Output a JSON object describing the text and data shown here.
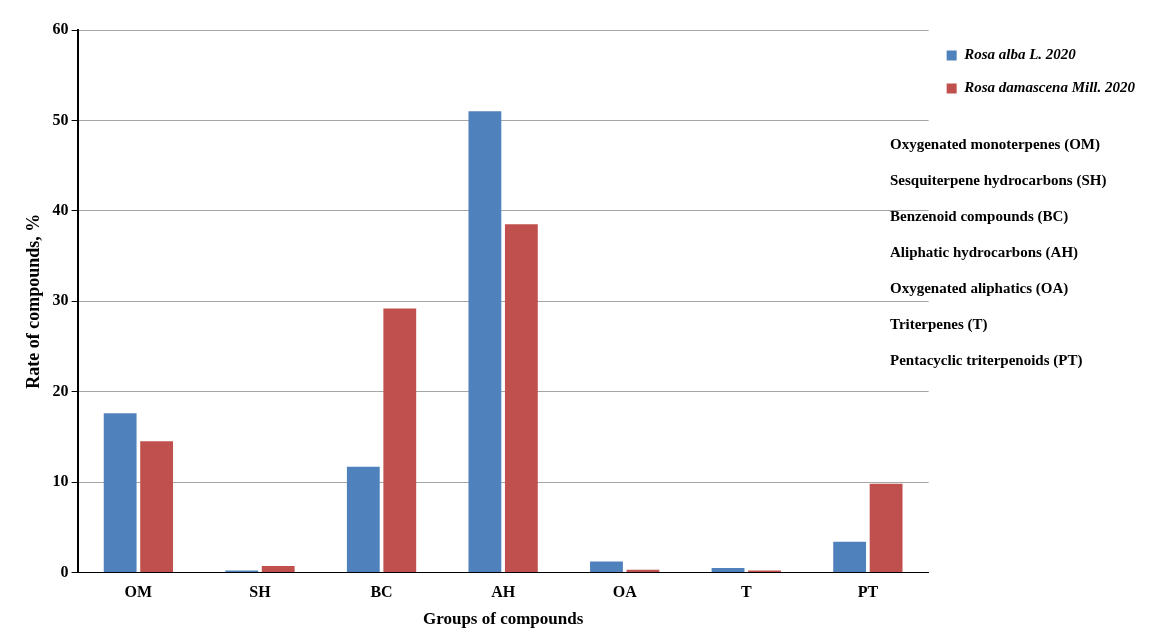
{
  "chart_data": {
    "type": "bar",
    "xlabel": "Groups of compounds",
    "ylabel": "Rate of compounds, %",
    "categories": [
      "OM",
      "SH",
      "BC",
      "AH",
      "OA",
      "T",
      "PT"
    ],
    "series": [
      {
        "name": "Rosa alba L. 2020",
        "color": "#4f81bd",
        "values": [
          17.6,
          0.2,
          11.7,
          51,
          1.2,
          0.5,
          3.4
        ]
      },
      {
        "name": "Rosa damascena Mill. 2020",
        "color": "#c0504d",
        "values": [
          14.5,
          0.7,
          29.2,
          38.5,
          0.3,
          0.2,
          9.8
        ]
      }
    ],
    "ylim": [
      0,
      60
    ],
    "yticks": [
      0,
      10,
      20,
      30,
      40,
      50,
      60
    ],
    "grid": "y",
    "legend": "top right",
    "annotations": [
      "Oxygenated monoterpenes (OM)",
      "Sesquiterpene hydrocarbons (SH)",
      "Benzenoid compounds (BC)",
      "Aliphatic hydrocarbons (AH)",
      "Oxygenated aliphatics (OA)",
      "Triterpenes (T)",
      "Pentacyclic triterpenoids (PT)"
    ]
  }
}
